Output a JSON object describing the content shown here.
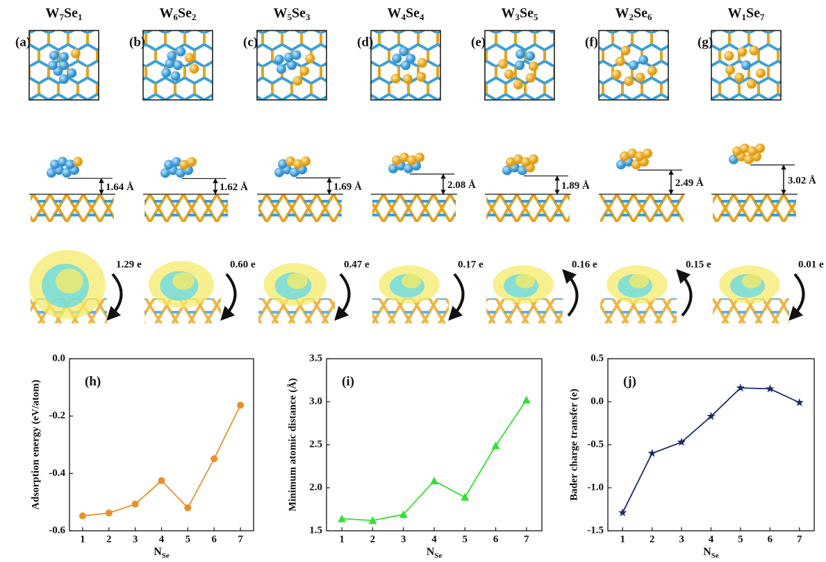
{
  "structures": [
    {
      "label": "(a)",
      "formula": [
        "W",
        "7",
        "Se",
        "1"
      ],
      "distance": "1.64 Å",
      "charge": "1.29 e"
    },
    {
      "label": "(b)",
      "formula": [
        "W",
        "6",
        "Se",
        "2"
      ],
      "distance": "1.62 Å",
      "charge": "0.60 e"
    },
    {
      "label": "(c)",
      "formula": [
        "W",
        "5",
        "Se",
        "3"
      ],
      "distance": "1.69 Å",
      "charge": "0.47 e"
    },
    {
      "label": "(d)",
      "formula": [
        "W",
        "4",
        "Se",
        "4"
      ],
      "distance": "2.08 Å",
      "charge": "0.17 e"
    },
    {
      "label": "(e)",
      "formula": [
        "W",
        "3",
        "Se",
        "5"
      ],
      "distance": "1.89 Å",
      "charge": "0.16 e"
    },
    {
      "label": "(f)",
      "formula": [
        "W",
        "2",
        "Se",
        "6"
      ],
      "distance": "2.49 Å",
      "charge": "0.15 e"
    },
    {
      "label": "(g)",
      "formula": [
        "W",
        "1",
        "Se",
        "7"
      ],
      "distance": "3.02 Å",
      "charge": "0.01 e"
    }
  ],
  "chart_data": [
    {
      "type": "line",
      "panel": "(h)",
      "ylabel": "Adsorption energy (eV/atom)",
      "xlabel": [
        "N",
        "Se"
      ],
      "x": [
        1,
        2,
        3,
        4,
        5,
        6,
        7
      ],
      "values": [
        -0.548,
        -0.538,
        -0.507,
        -0.425,
        -0.52,
        -0.349,
        -0.162
      ],
      "color": "#e8912a",
      "marker": "circle",
      "xlim": [
        0.5,
        7.5
      ],
      "xticks": [
        1,
        2,
        3,
        4,
        5,
        6,
        7
      ],
      "ylim": [
        -0.6,
        0
      ],
      "yticks": [
        -0.6,
        -0.4,
        -0.2,
        {
          "value": 0,
          "label": "0.0"
        }
      ]
    },
    {
      "type": "line",
      "panel": "(i)",
      "ylabel": "Minimum atomic distance (Å)",
      "xlabel": [
        "N",
        "Se"
      ],
      "x": [
        1,
        2,
        3,
        4,
        5,
        6,
        7
      ],
      "values": [
        1.64,
        1.62,
        1.69,
        2.08,
        1.89,
        2.49,
        3.02
      ],
      "color": "#33e033",
      "marker": "triangle",
      "xlim": [
        0.5,
        7.5
      ],
      "xticks": [
        1,
        2,
        3,
        4,
        5,
        6,
        7
      ],
      "ylim": [
        1.5,
        3.5
      ],
      "yticks": [
        1.5,
        {
          "value": 2,
          "label": "2.0"
        },
        2.5,
        {
          "value": 3,
          "label": "3.0"
        },
        3.5
      ]
    },
    {
      "type": "line",
      "panel": "(j)",
      "ylabel": "Bader charge transfer (e)",
      "xlabel": [
        "N",
        "Se"
      ],
      "x": [
        1,
        2,
        3,
        4,
        5,
        6,
        7
      ],
      "values": [
        -1.29,
        -0.6,
        -0.47,
        -0.17,
        0.16,
        0.15,
        -0.01
      ],
      "color": "#1c2a70",
      "marker": "star",
      "xlim": [
        0.5,
        7.5
      ],
      "xticks": [
        1,
        2,
        3,
        4,
        5,
        6,
        7
      ],
      "ylim": [
        -1.5,
        0.5
      ],
      "yticks": [
        -1.5,
        {
          "value": -1,
          "label": "-1.0"
        },
        -0.5,
        {
          "value": 0,
          "label": "0.0"
        },
        0.5
      ]
    }
  ]
}
